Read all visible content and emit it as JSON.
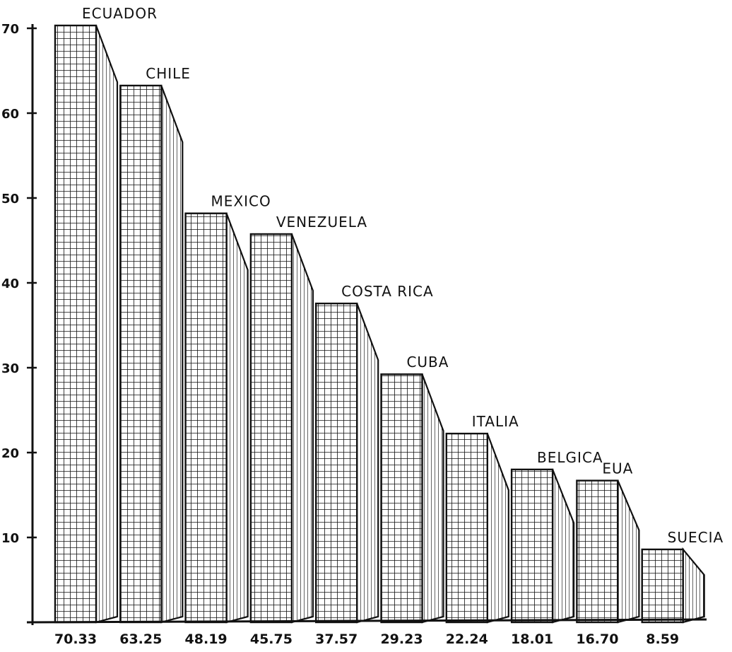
{
  "chart_data": {
    "type": "bar",
    "title": "",
    "xlabel": "",
    "ylabel": "",
    "ylim": [
      0,
      70
    ],
    "grid": false,
    "legend": "none",
    "y_ticks": [
      "10",
      "20",
      "30",
      "40",
      "50",
      "60",
      "70"
    ],
    "categories": [
      "ECUADOR",
      "CHILE",
      "MEXICO",
      "VENEZUELA",
      "COSTA RICA",
      "CUBA",
      "ITALIA",
      "BELGICA",
      "EUA",
      "SUECIA"
    ],
    "value_labels": [
      "70.33",
      "63.25",
      "48.19",
      "45.75",
      "37.57",
      "29.23",
      "22.24",
      "18.01",
      "16.70",
      "8.59"
    ],
    "values": [
      70.33,
      63.25,
      48.19,
      45.75,
      37.57,
      29.23,
      22.24,
      18.01,
      16.7,
      8.59
    ],
    "colors": {
      "ink": "#111111",
      "background": "#ffffff",
      "front_face": "#ffffff",
      "side_face": "#ffffff"
    },
    "style": "3d-hatched-bars"
  }
}
